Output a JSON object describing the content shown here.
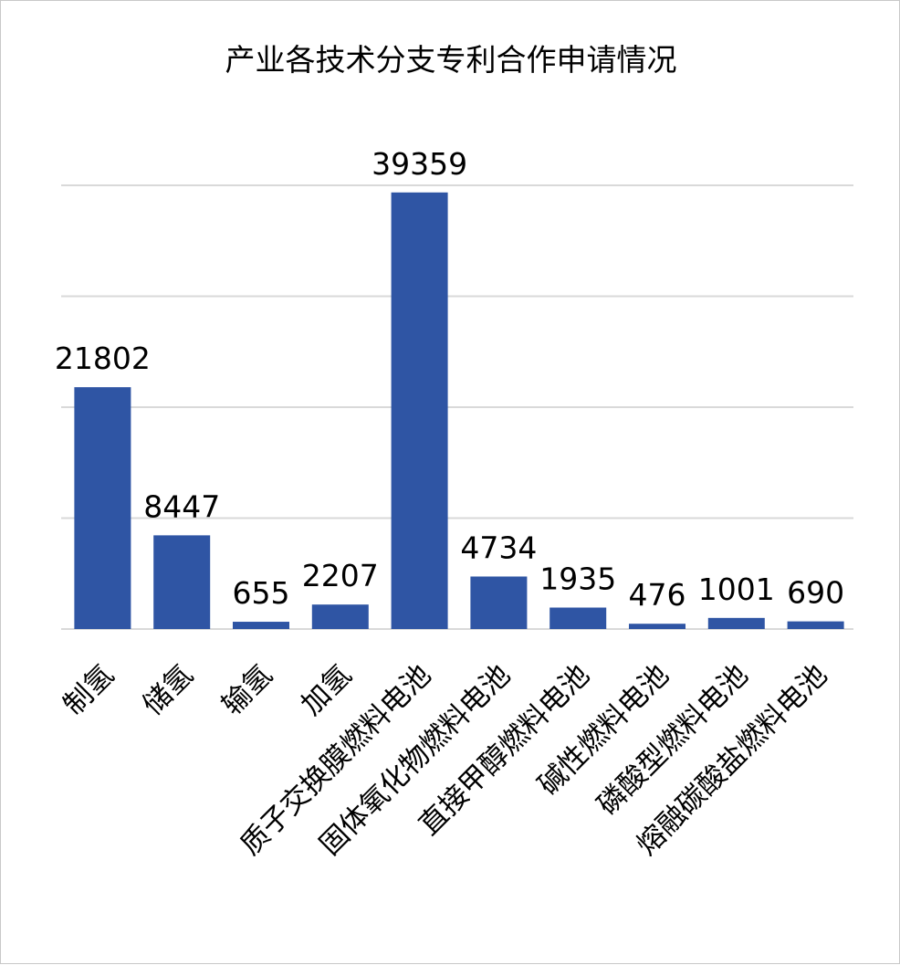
{
  "chart_data": {
    "type": "bar",
    "title": "产业各技术分支专利合作申请情况",
    "categories": [
      "制氢",
      "储氢",
      "输氢",
      "加氢",
      "质子交换膜燃料电池",
      "固体氧化物燃料电池",
      "直接甲醇燃料电池",
      "碱性燃料电池",
      "磷酸型燃料电池",
      "熔融碳酸盐燃料电池"
    ],
    "values": [
      21802,
      8447,
      655,
      2207,
      39359,
      4734,
      1935,
      476,
      1001,
      690
    ],
    "ylim": [
      0,
      40000
    ],
    "y_gridlines": [
      0,
      10000,
      20000,
      30000,
      40000
    ],
    "grid": true,
    "legend": false,
    "bar_color": "#2f55a4",
    "data_labels": true,
    "xlabel": "",
    "ylabel": ""
  }
}
